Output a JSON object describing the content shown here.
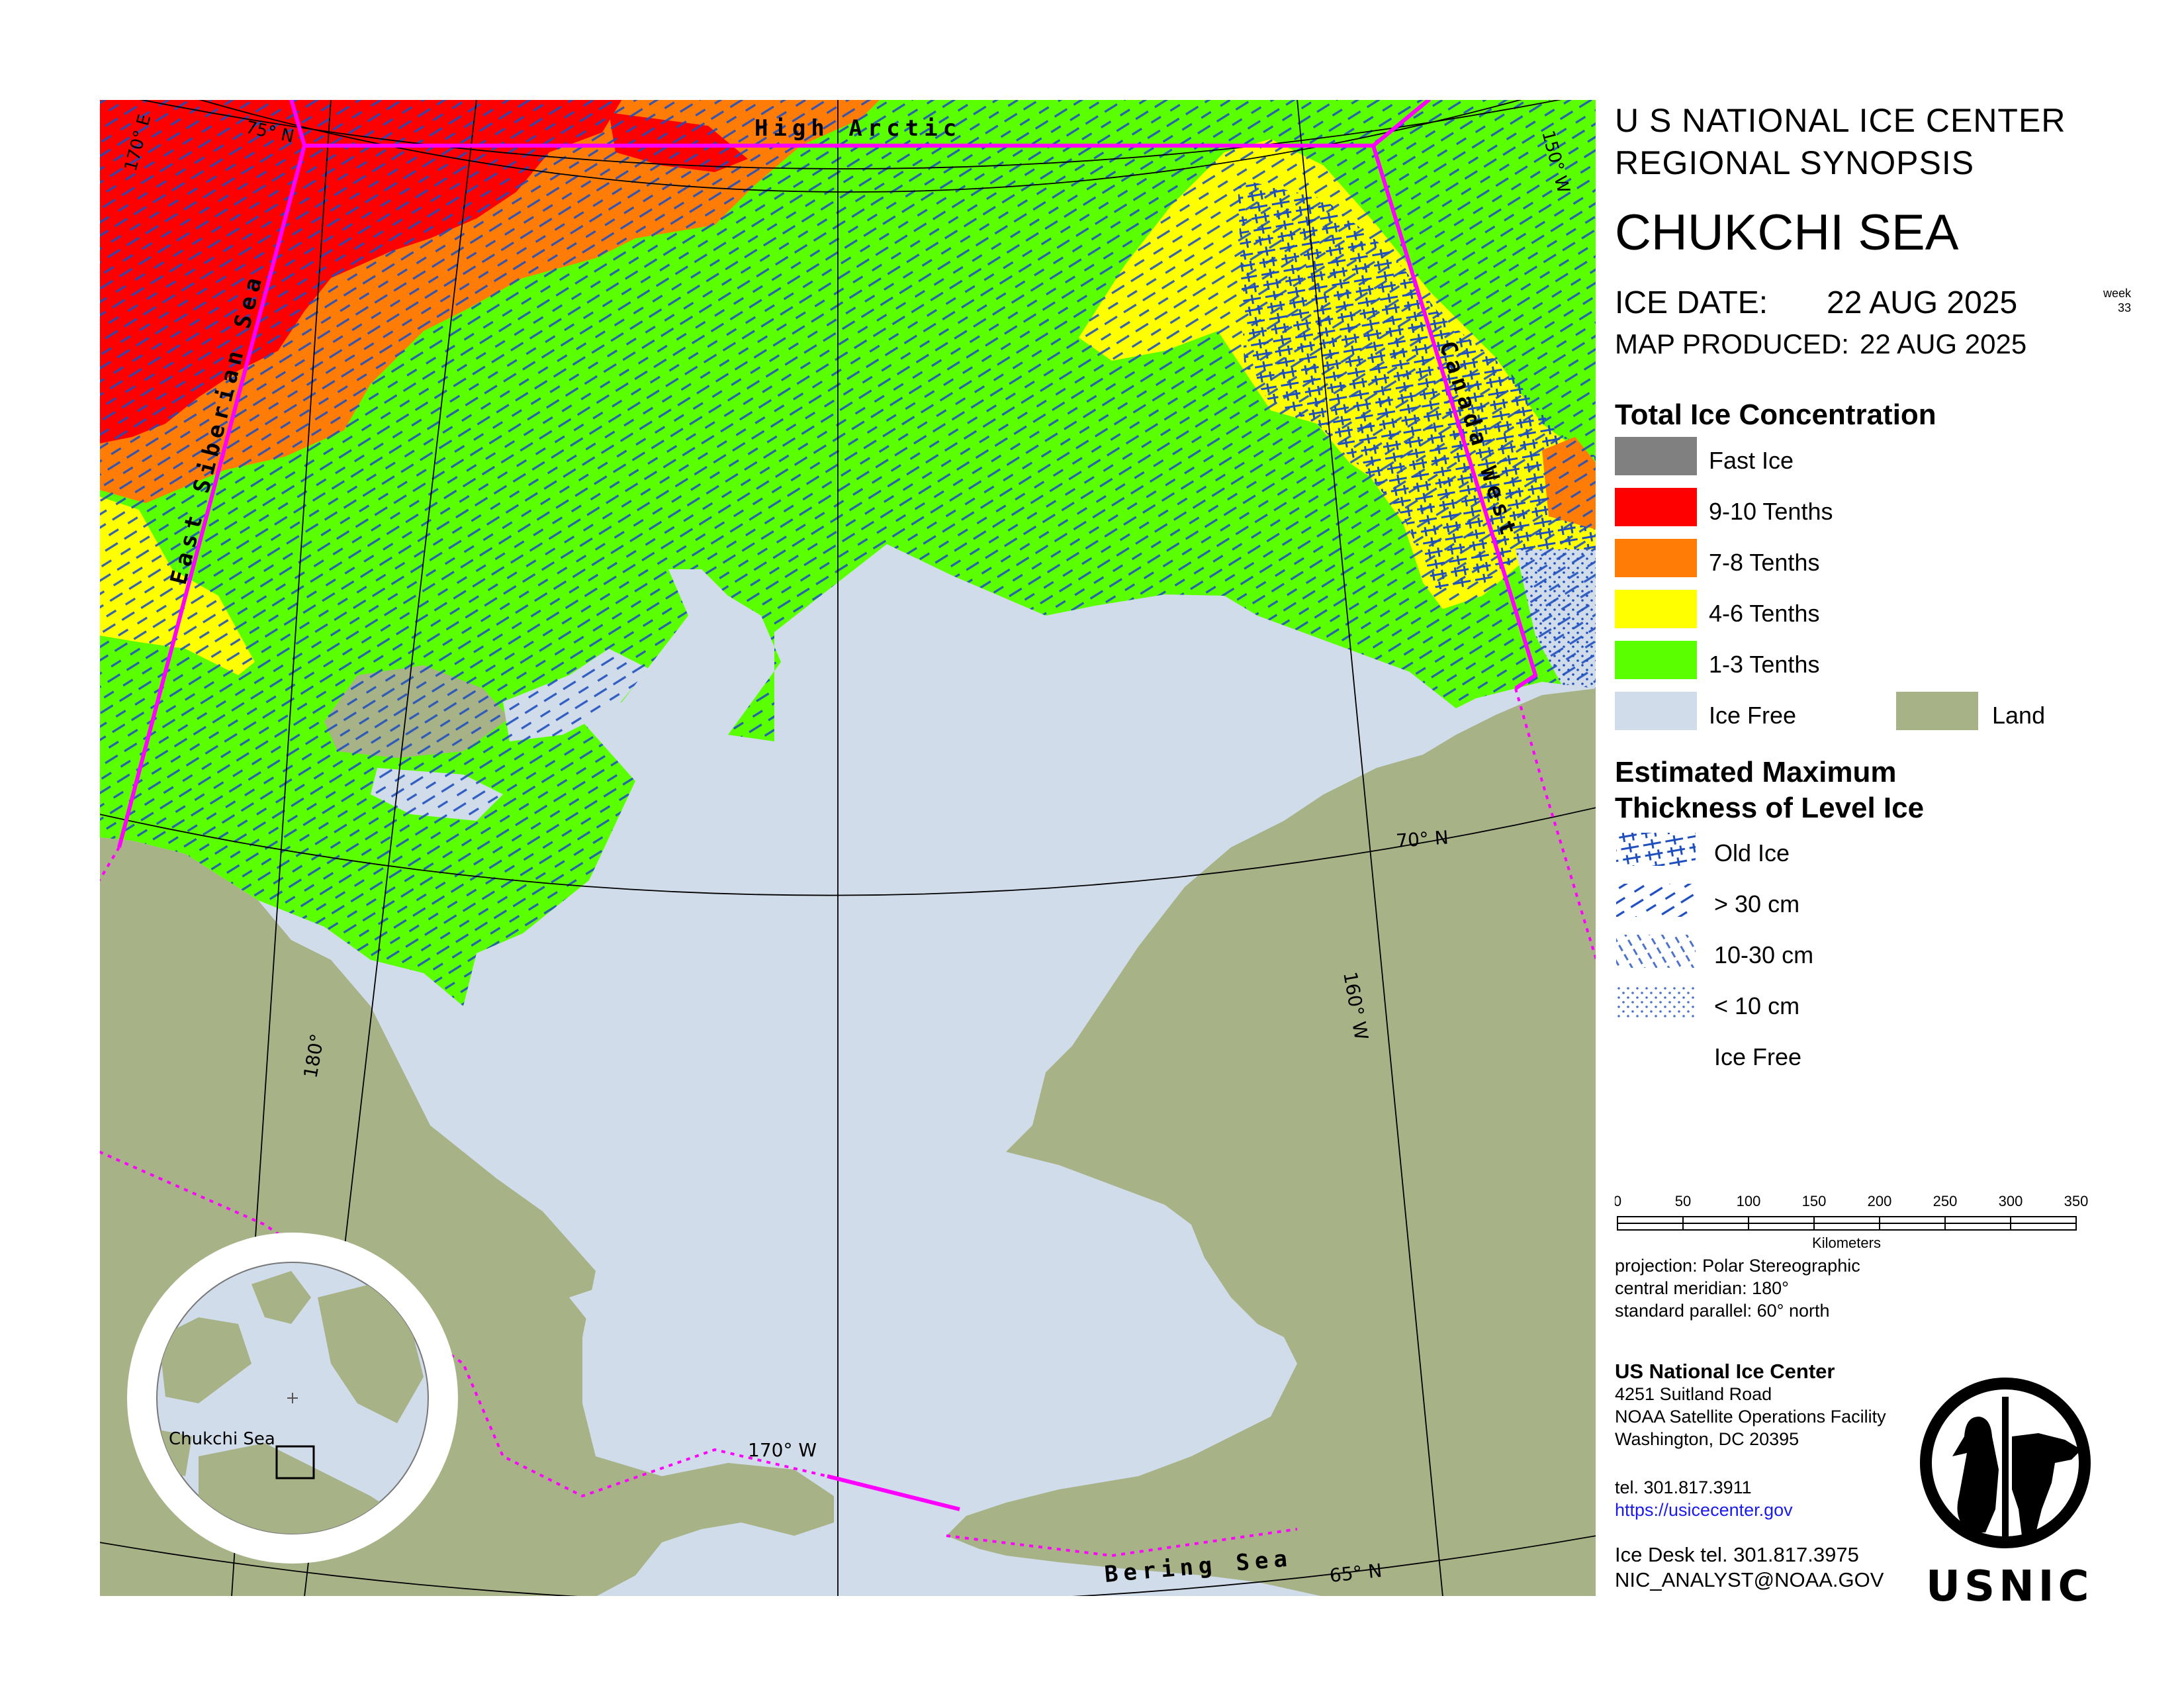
{
  "header": {
    "agency_line1": "U S NATIONAL ICE CENTER",
    "agency_line2": "REGIONAL SYNOPSIS",
    "region": "CHUKCHI SEA",
    "ice_date_label": "ICE DATE:",
    "ice_date_value": "22 AUG 2025",
    "week_label": "week",
    "week_number": "33",
    "map_produced_label": "MAP PRODUCED:",
    "map_produced_value": "22 AUG 2025"
  },
  "legend": {
    "concentration_title": "Total Ice Concentration",
    "concentration_items": [
      {
        "label": "Fast Ice",
        "color": "#808080"
      },
      {
        "label": "9-10 Tenths",
        "color": "#ff0000"
      },
      {
        "label": "7-8 Tenths",
        "color": "#ff7d07"
      },
      {
        "label": "4-6 Tenths",
        "color": "#ffff00"
      },
      {
        "label": "1-3 Tenths",
        "color": "#5aff00"
      },
      {
        "label": "Ice Free",
        "color": "#d0dce9"
      },
      {
        "label": "Land",
        "color": "#a8b287"
      }
    ],
    "thickness_title_line1": "Estimated Maximum",
    "thickness_title_line2": "Thickness of Level Ice",
    "thickness_items": [
      {
        "label": "Old Ice",
        "icon": "old-ice-pattern"
      },
      {
        "label": "> 30 cm",
        "icon": "dash-pattern"
      },
      {
        "label": "10-30 cm",
        "icon": "hatch-pattern"
      },
      {
        "label": "< 10 cm",
        "icon": "dot-pattern"
      },
      {
        "label": "Ice Free",
        "icon": "none"
      }
    ]
  },
  "scale": {
    "ticks": [
      "0",
      "50",
      "100",
      "150",
      "200",
      "250",
      "300",
      "350"
    ],
    "unit": "Kilometers"
  },
  "projection": {
    "line1": "projection: Polar Stereographic",
    "line2": "central meridian: 180°",
    "line3": "standard parallel:  60° north"
  },
  "organization": {
    "name": "US National Ice Center",
    "address1": "4251 Suitland Road",
    "address2": "NOAA Satellite Operations Facility",
    "address3": "Washington, DC  20395",
    "tel": "tel. 301.817.3911",
    "url": "https://usicecenter.gov",
    "ice_desk": "Ice Desk tel. 301.817.3975",
    "email": "NIC_ANALYST@NOAA.GOV",
    "logo_text": "USNIC"
  },
  "map": {
    "region_labels": {
      "high_arctic": "High Arctic",
      "east_siberian": "East Siberian Sea",
      "canada_west": "Canada West",
      "bering": "Bering Sea"
    },
    "grid_labels": {
      "lat75": "75° N",
      "lat70": "70° N",
      "lat65": "65° N",
      "lon170e": "170° E",
      "lon180": "180°",
      "lon170w": "170° W",
      "lon160w": "160° W",
      "lon150w": "150° W"
    },
    "inset_label": "Chukchi Sea"
  },
  "colors": {
    "boundary": "#ff00ff",
    "water": "#d0dce9",
    "land": "#a8b287",
    "pattern_stroke": "#1f4fbf"
  }
}
